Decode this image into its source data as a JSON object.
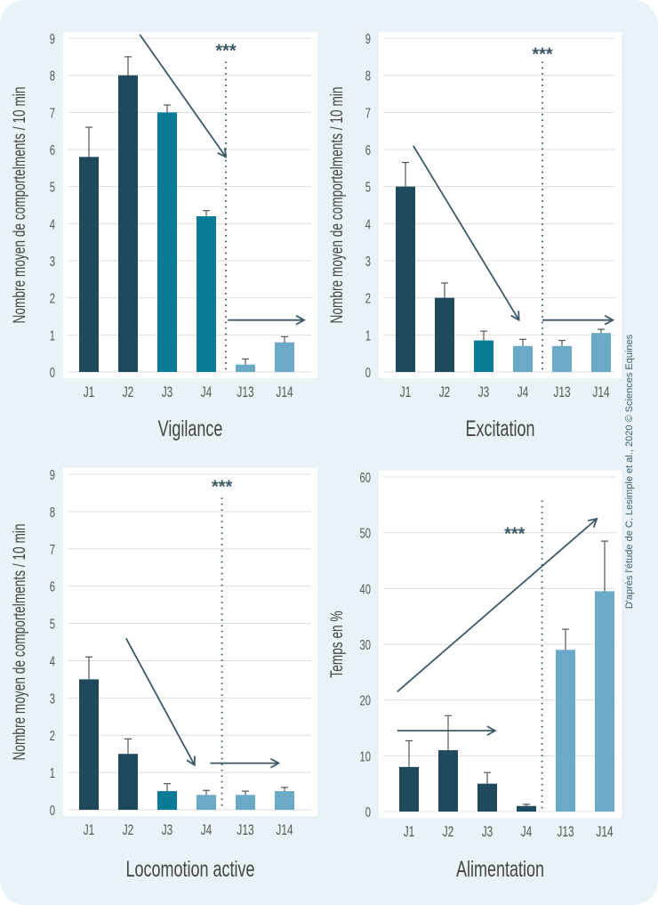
{
  "credit": "D'après l'étude de C. Lesimple et al., 2020 © Sciences Equines",
  "colors": {
    "dark": "#1f4a5e",
    "teal": "#0a7b96",
    "light": "#6aaac6",
    "annotation": "#3d5866",
    "grid": "#dddddd"
  },
  "chart_data": [
    {
      "type": "bar",
      "title": "Vigilance",
      "ylabel": "Nombre moyen  de comportelments / 10 min",
      "categories": [
        "J1",
        "J2",
        "J3",
        "J4",
        "J13",
        "J14"
      ],
      "values": [
        5.8,
        8.0,
        7.0,
        4.2,
        0.2,
        0.8
      ],
      "error_upper": [
        6.6,
        8.5,
        7.2,
        4.35,
        0.35,
        0.95
      ],
      "bar_colors": [
        "dark",
        "dark",
        "teal",
        "teal",
        "light",
        "light"
      ],
      "ylim": [
        0,
        9
      ],
      "yticks": [
        0,
        1,
        2,
        3,
        4,
        5,
        6,
        7,
        8,
        9
      ],
      "grid": true,
      "significance": "***",
      "annotations": {
        "divider_x": 3.5,
        "stars": [
          3.5,
          8.7
        ],
        "arrows": [
          [
            [
              1.3,
              9.1
            ],
            [
              3.5,
              5.8
            ]
          ],
          [
            [
              3.55,
              1.4
            ],
            [
              5.5,
              1.4
            ]
          ]
        ]
      }
    },
    {
      "type": "bar",
      "title": "Excitation",
      "ylabel": "Nombre moyen  de comportelments / 10 min",
      "categories": [
        "J1",
        "J2",
        "J3",
        "J4",
        "J13",
        "J14"
      ],
      "values": [
        5.0,
        2.0,
        0.85,
        0.7,
        0.7,
        1.05
      ],
      "error_upper": [
        5.65,
        2.4,
        1.1,
        0.88,
        0.85,
        1.15
      ],
      "bar_colors": [
        "dark",
        "dark",
        "teal",
        "light",
        "light",
        "light"
      ],
      "ylim": [
        0,
        9
      ],
      "yticks": [
        0,
        1,
        2,
        3,
        4,
        5,
        6,
        7,
        8,
        9
      ],
      "grid": true,
      "significance": "***",
      "annotations": {
        "divider_x": 3.5,
        "stars": [
          3.5,
          8.6
        ],
        "arrows": [
          [
            [
              0.2,
              6.1
            ],
            [
              2.9,
              1.4
            ]
          ],
          [
            [
              3.5,
              1.4
            ],
            [
              5.3,
              1.4
            ]
          ]
        ]
      }
    },
    {
      "type": "bar",
      "title": "Locomotion active",
      "ylabel": "Nombre moyen  de comportelments / 10 min",
      "categories": [
        "J1",
        "J2",
        "J3",
        "J4",
        "J13",
        "J14"
      ],
      "values": [
        3.5,
        1.5,
        0.5,
        0.4,
        0.4,
        0.5
      ],
      "error_upper": [
        4.1,
        1.9,
        0.7,
        0.52,
        0.5,
        0.6
      ],
      "bar_colors": [
        "dark",
        "dark",
        "teal",
        "light",
        "light",
        "light"
      ],
      "ylim": [
        0,
        9
      ],
      "yticks": [
        0,
        1,
        2,
        3,
        4,
        5,
        6,
        7,
        8,
        9
      ],
      "grid": true,
      "significance": "***",
      "annotations": {
        "divider_x": 3.4,
        "stars": [
          3.4,
          8.7
        ],
        "arrows": [
          [
            [
              0.95,
              4.6
            ],
            [
              2.7,
              1.2
            ]
          ],
          [
            [
              3.1,
              1.25
            ],
            [
              4.85,
              1.25
            ]
          ]
        ]
      }
    },
    {
      "type": "bar",
      "title": "Alimentation",
      "ylabel": "Temps en %",
      "categories": [
        "J1",
        "J2",
        "J3",
        "J4",
        "J13",
        "J14"
      ],
      "values": [
        8,
        11,
        5,
        1,
        29,
        39.5
      ],
      "error_upper": [
        12.7,
        17.2,
        7,
        1.3,
        32.7,
        48.5
      ],
      "bar_colors": [
        "dark",
        "dark",
        "dark",
        "dark",
        "light",
        "light"
      ],
      "ylim": [
        0,
        60
      ],
      "yticks": [
        0,
        10,
        20,
        30,
        40,
        50,
        60
      ],
      "grid": true,
      "significance": "***",
      "annotations": {
        "divider_x": 3.4,
        "stars": [
          2.7,
          50
        ],
        "arrows": [
          [
            [
              -0.3,
              21.5
            ],
            [
              4.8,
              52.5
            ]
          ],
          [
            [
              -0.3,
              14.5
            ],
            [
              2.2,
              14.5
            ]
          ]
        ]
      }
    }
  ]
}
